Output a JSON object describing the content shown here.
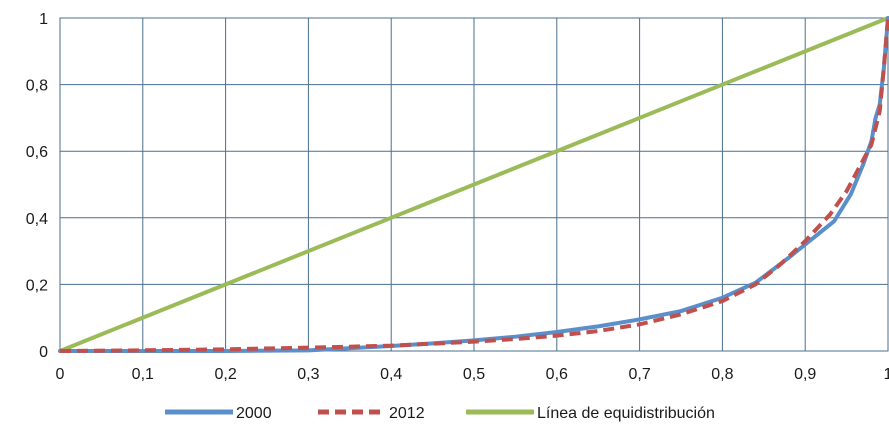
{
  "chart_data": {
    "type": "line",
    "title": "",
    "xlabel": "",
    "ylabel": "",
    "xlim": [
      0,
      1
    ],
    "ylim": [
      0,
      1
    ],
    "grid": true,
    "legend_position": "bottom",
    "x_ticks": [
      "0",
      "0,1",
      "0,2",
      "0,3",
      "0,4",
      "0,5",
      "0,6",
      "0,7",
      "0,8",
      "0,9",
      "1"
    ],
    "y_ticks": [
      "0",
      "0,2",
      "0,4",
      "0,6",
      "0,8",
      "1"
    ],
    "series": [
      {
        "name": "2000",
        "color": "#5b8fc9",
        "style": "solid",
        "x": [
          0,
          0.1,
          0.2,
          0.3,
          0.4,
          0.45,
          0.5,
          0.55,
          0.6,
          0.65,
          0.7,
          0.75,
          0.8,
          0.84,
          0.88,
          0.91,
          0.935,
          0.955,
          0.97,
          0.98,
          0.985,
          0.99,
          0.995,
          1
        ],
        "y": [
          0,
          0,
          0,
          0.002,
          0.015,
          0.023,
          0.032,
          0.043,
          0.057,
          0.074,
          0.095,
          0.12,
          0.16,
          0.205,
          0.28,
          0.34,
          0.39,
          0.47,
          0.56,
          0.63,
          0.7,
          0.74,
          0.85,
          1
        ]
      },
      {
        "name": "2012",
        "color": "#c0504d",
        "style": "dashed",
        "x": [
          0,
          0.1,
          0.2,
          0.3,
          0.4,
          0.45,
          0.5,
          0.55,
          0.6,
          0.65,
          0.7,
          0.75,
          0.8,
          0.84,
          0.87,
          0.9,
          0.93,
          0.95,
          0.965,
          0.98,
          0.99,
          0.995,
          1
        ],
        "y": [
          0,
          0.002,
          0.005,
          0.01,
          0.016,
          0.022,
          0.028,
          0.036,
          0.046,
          0.06,
          0.08,
          0.11,
          0.15,
          0.2,
          0.26,
          0.33,
          0.41,
          0.48,
          0.55,
          0.62,
          0.72,
          0.85,
          1
        ]
      },
      {
        "name": "Línea de equidistribución",
        "color": "#9bbb59",
        "style": "solid",
        "x": [
          0,
          1
        ],
        "y": [
          0,
          1
        ]
      }
    ]
  }
}
